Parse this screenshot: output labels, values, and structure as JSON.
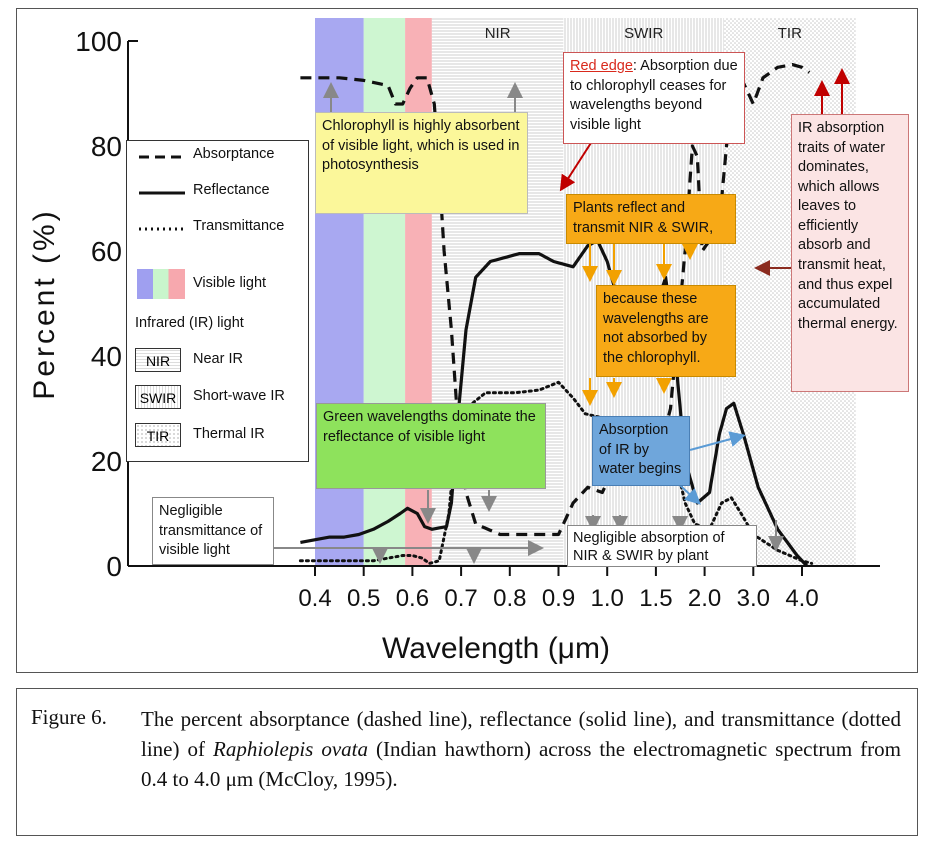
{
  "figure": {
    "caption_label": "Figure 6.",
    "caption_pre": "The percent absorptance (dashed line), reflectance (solid line), and transmittance (dotted line) of ",
    "caption_species": "Raphiolepis ovata",
    "caption_post": " (Indian hawthorn) across the electromagnetic spectrum from 0.4 to 4.0 μm (McCloy, 1995)."
  },
  "chart_data": {
    "type": "line",
    "xlabel": "Wavelength (μm)",
    "ylabel": "Percent (%)",
    "x_ticks": [
      "0.4",
      "0.5",
      "0.6",
      "0.7",
      "0.8",
      "0.9",
      "1.0",
      "1.5",
      "2.0",
      "3.0",
      "4.0"
    ],
    "y_ticks": [
      "0",
      "20",
      "40",
      "60",
      "80",
      "100"
    ],
    "ylim": [
      0,
      100
    ],
    "x_axis_note": "non-linear wavelength axis; series x values given as tick-index positions (0 = 0.4 μm, 10 = 4.0 μm)",
    "bands": [
      {
        "label": "",
        "from": 0,
        "to": 1,
        "color": "#9f9ff0"
      },
      {
        "label": "",
        "from": 1,
        "to": 1.85,
        "color": "#c9f5cc"
      },
      {
        "label": "",
        "from": 1.85,
        "to": 2.4,
        "color": "#f7a8ae"
      },
      {
        "label": "NIR",
        "from": 2.4,
        "to": 5.1,
        "pattern": "horizontal-lines"
      },
      {
        "label": "SWIR",
        "from": 5.1,
        "to": 8.4,
        "pattern": "vertical-lines"
      },
      {
        "label": "TIR",
        "from": 8.4,
        "to": 11.1,
        "pattern": "dots"
      }
    ],
    "series": [
      {
        "name": "Absorptance",
        "style": "dashed",
        "points": [
          [
            -0.3,
            93
          ],
          [
            0.5,
            93
          ],
          [
            1.0,
            92.5
          ],
          [
            1.5,
            91.5
          ],
          [
            1.65,
            88
          ],
          [
            1.8,
            88
          ],
          [
            1.95,
            91
          ],
          [
            2.1,
            93
          ],
          [
            2.3,
            93
          ],
          [
            2.45,
            88
          ],
          [
            2.55,
            75
          ],
          [
            2.65,
            60
          ],
          [
            2.8,
            45
          ],
          [
            2.95,
            25
          ],
          [
            3.1,
            14
          ],
          [
            3.3,
            8
          ],
          [
            3.8,
            6
          ],
          [
            4.4,
            6
          ],
          [
            5.0,
            6
          ],
          [
            5.3,
            12
          ],
          [
            5.6,
            15
          ],
          [
            5.9,
            14
          ],
          [
            6.1,
            18
          ],
          [
            6.5,
            19
          ],
          [
            7.0,
            19
          ],
          [
            7.3,
            30
          ],
          [
            7.6,
            60
          ],
          [
            7.75,
            80
          ],
          [
            7.85,
            78
          ],
          [
            7.95,
            60
          ],
          [
            8.1,
            62
          ],
          [
            8.3,
            65
          ],
          [
            8.55,
            90
          ],
          [
            8.75,
            93
          ],
          [
            9.0,
            88
          ],
          [
            9.2,
            93
          ],
          [
            9.5,
            95
          ],
          [
            9.8,
            95.5
          ],
          [
            10.0,
            95
          ],
          [
            10.15,
            94
          ]
        ]
      },
      {
        "name": "Reflectance",
        "style": "solid",
        "points": [
          [
            -0.3,
            4.5
          ],
          [
            0.3,
            5.5
          ],
          [
            0.6,
            5.5
          ],
          [
            0.9,
            6
          ],
          [
            1.2,
            7
          ],
          [
            1.5,
            8.5
          ],
          [
            1.75,
            10
          ],
          [
            1.9,
            11
          ],
          [
            2.1,
            10
          ],
          [
            2.25,
            7.5
          ],
          [
            2.4,
            7
          ],
          [
            2.7,
            7.5
          ],
          [
            2.8,
            12
          ],
          [
            2.95,
            30
          ],
          [
            3.1,
            45
          ],
          [
            3.3,
            55
          ],
          [
            3.6,
            58
          ],
          [
            4.2,
            59.5
          ],
          [
            4.6,
            59.5
          ],
          [
            4.9,
            58
          ],
          [
            5.3,
            57
          ],
          [
            5.6,
            61
          ],
          [
            5.8,
            62
          ],
          [
            6.0,
            58
          ],
          [
            6.3,
            48
          ],
          [
            6.5,
            42
          ],
          [
            6.9,
            38
          ],
          [
            7.1,
            52
          ],
          [
            7.2,
            55
          ],
          [
            7.35,
            45
          ],
          [
            7.6,
            20
          ],
          [
            7.85,
            12
          ],
          [
            8.1,
            14
          ],
          [
            8.3,
            25
          ],
          [
            8.45,
            30
          ],
          [
            8.6,
            31
          ],
          [
            8.8,
            25
          ],
          [
            9.1,
            15
          ],
          [
            9.5,
            7
          ],
          [
            9.9,
            2
          ],
          [
            10.1,
            0
          ]
        ]
      },
      {
        "name": "Transmittance",
        "style": "dotted",
        "points": [
          [
            -0.3,
            1
          ],
          [
            0.5,
            1
          ],
          [
            1.2,
            1
          ],
          [
            1.5,
            1.5
          ],
          [
            1.8,
            2
          ],
          [
            2.0,
            2
          ],
          [
            2.2,
            1.5
          ],
          [
            2.35,
            0.5
          ],
          [
            2.55,
            1
          ],
          [
            2.75,
            10
          ],
          [
            2.9,
            25
          ],
          [
            3.1,
            30
          ],
          [
            3.5,
            33
          ],
          [
            4.1,
            33
          ],
          [
            4.6,
            33.5
          ],
          [
            5.0,
            35
          ],
          [
            5.3,
            32
          ],
          [
            5.55,
            29
          ],
          [
            6.0,
            28
          ],
          [
            6.5,
            28
          ],
          [
            7.2,
            28
          ],
          [
            7.4,
            20
          ],
          [
            7.6,
            12
          ],
          [
            7.8,
            8
          ],
          [
            8.1,
            7
          ],
          [
            8.35,
            12
          ],
          [
            8.55,
            13
          ],
          [
            8.75,
            10
          ],
          [
            9.0,
            6
          ],
          [
            9.5,
            3
          ],
          [
            10.0,
            1
          ],
          [
            10.2,
            0.5
          ]
        ]
      }
    ],
    "legend": {
      "placement": "left",
      "entries": [
        "Absorptance",
        "Reflectance",
        "Transmittance",
        "Visible light",
        "Infrared (IR) light",
        "Near IR",
        "Short-wave IR",
        "Thermal IR"
      ],
      "boxes": [
        "NIR",
        "SWIR",
        "TIR"
      ]
    },
    "band_labels": [
      "NIR",
      "SWIR",
      "TIR"
    ],
    "annotations": {
      "chlorophyll": "Chlorophyll is highly absorbent of visible light, which is used in photosynthesis",
      "red_edge_title": "Red edge",
      "red_edge_text": ": Absorption due to chlorophyll ceases for wavelengths beyond visible light",
      "plants_reflect": "Plants reflect and transmit NIR & SWIR,",
      "because": "because these wavelengths are not absorbed by the chlorophyll.",
      "ir_water": "IR absorption traits of water dominates, which allows leaves to efficiently absorb and transmit heat, and thus expel accumulated thermal energy.",
      "green": "Green wavelengths dominate the reflectance of visible light",
      "absorption_ir": "Absorption of IR by water begins",
      "negligible_trans": "Negligible transmittance of visible light",
      "negligible_abs": "Negligible absorption of NIR & SWIR by plant"
    },
    "colors": {
      "arrow_gray": "#888888",
      "arrow_orange": "#f2a100",
      "arrow_blue": "#5b9bd5",
      "arrow_red": "#c00000",
      "arrow_darkred": "#8b2b1f"
    }
  }
}
